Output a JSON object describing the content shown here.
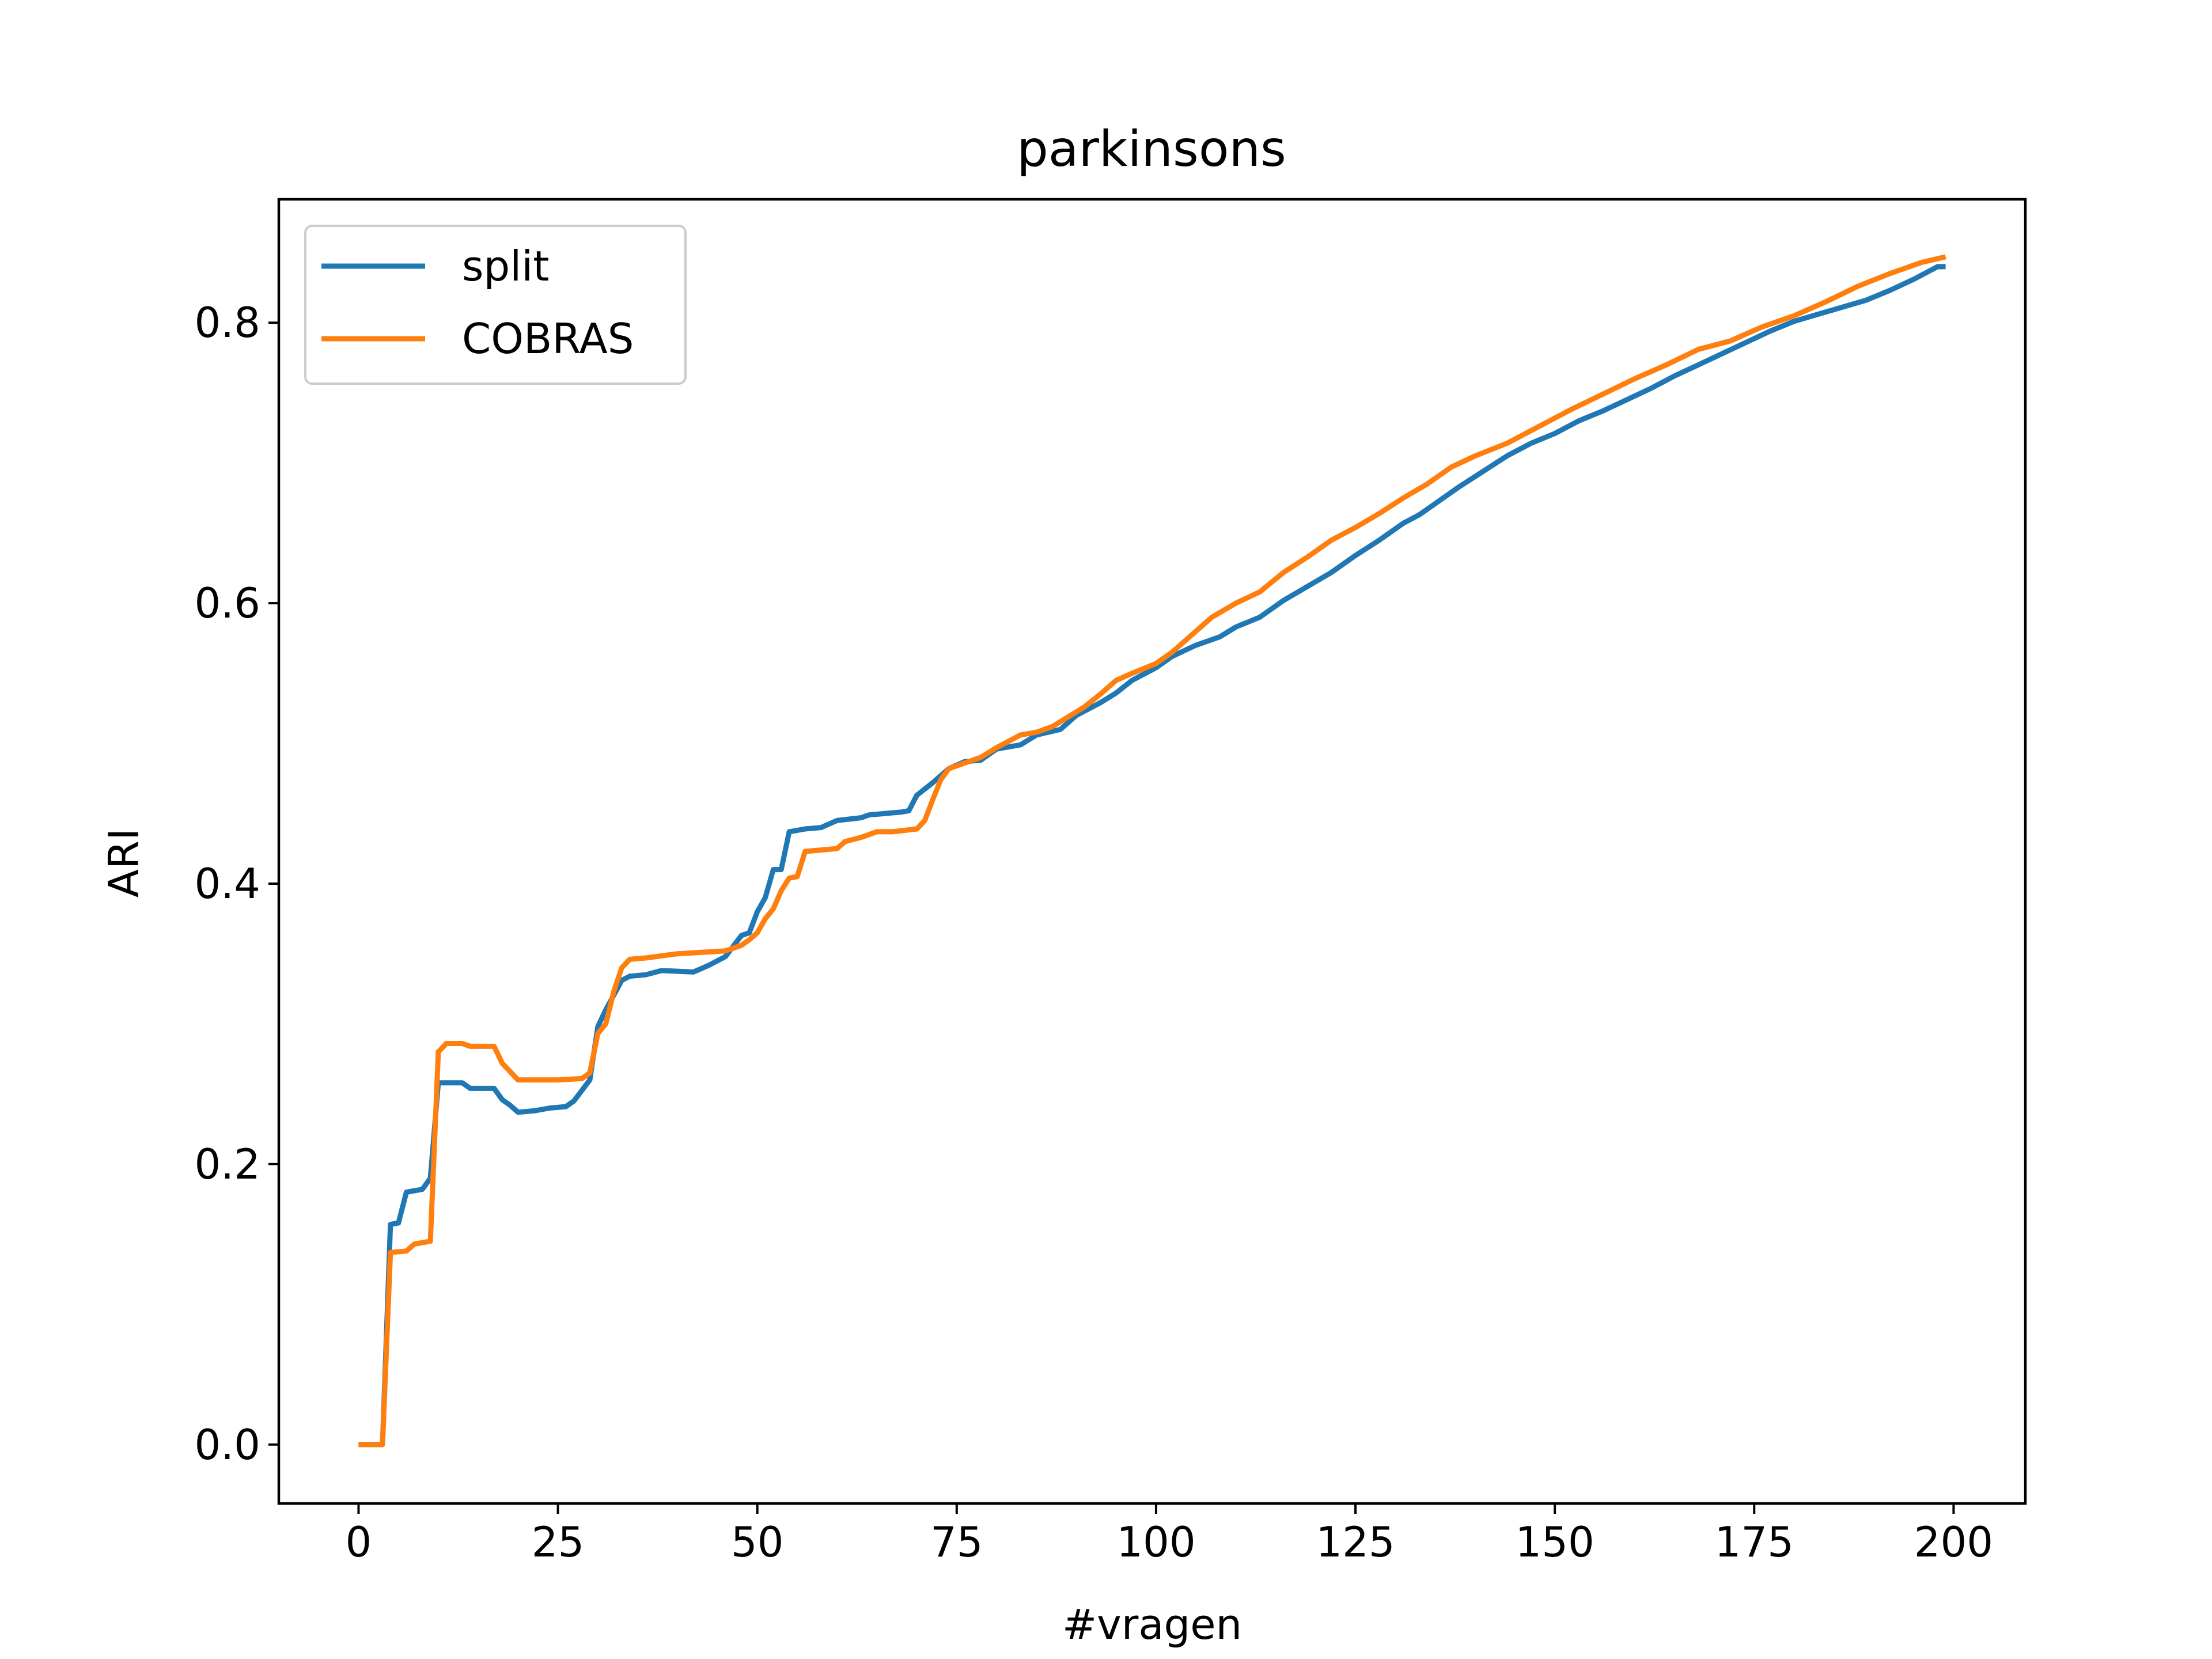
{
  "chart_data": {
    "type": "line",
    "title": "parkinsons",
    "xlabel": "#vragen",
    "ylabel": "ARI",
    "xlim": [
      -10,
      209
    ],
    "ylim": [
      -0.042,
      0.888
    ],
    "xticks": [
      0,
      25,
      50,
      75,
      100,
      125,
      150,
      175,
      200
    ],
    "xtick_labels": [
      "0",
      "25",
      "50",
      "75",
      "100",
      "125",
      "150",
      "175",
      "200"
    ],
    "yticks": [
      0.0,
      0.2,
      0.4,
      0.6,
      0.8
    ],
    "ytick_labels": [
      "0.0",
      "0.2",
      "0.4",
      "0.6",
      "0.8"
    ],
    "grid": false,
    "legend_position": "upper-left",
    "series": [
      {
        "name": "split",
        "color": "#1f77b4",
        "points": [
          [
            0,
            0.0
          ],
          [
            3,
            0.0
          ],
          [
            4,
            0.157
          ],
          [
            5,
            0.158
          ],
          [
            6,
            0.18
          ],
          [
            8,
            0.182
          ],
          [
            9,
            0.19
          ],
          [
            10,
            0.258
          ],
          [
            13,
            0.258
          ],
          [
            14,
            0.254
          ],
          [
            17,
            0.254
          ],
          [
            18,
            0.246
          ],
          [
            19,
            0.242
          ],
          [
            20,
            0.237
          ],
          [
            22,
            0.238
          ],
          [
            24,
            0.24
          ],
          [
            26,
            0.241
          ],
          [
            27,
            0.245
          ],
          [
            29,
            0.26
          ],
          [
            30,
            0.298
          ],
          [
            31,
            0.31
          ],
          [
            33,
            0.331
          ],
          [
            34,
            0.334
          ],
          [
            36,
            0.335
          ],
          [
            38,
            0.338
          ],
          [
            42,
            0.337
          ],
          [
            44,
            0.342
          ],
          [
            46,
            0.348
          ],
          [
            48,
            0.363
          ],
          [
            49,
            0.365
          ],
          [
            50,
            0.38
          ],
          [
            51,
            0.39
          ],
          [
            52,
            0.41
          ],
          [
            53,
            0.41
          ],
          [
            54,
            0.437
          ],
          [
            56,
            0.439
          ],
          [
            58,
            0.44
          ],
          [
            60,
            0.445
          ],
          [
            63,
            0.447
          ],
          [
            64,
            0.449
          ],
          [
            68,
            0.451
          ],
          [
            69,
            0.452
          ],
          [
            70,
            0.463
          ],
          [
            72,
            0.472
          ],
          [
            74,
            0.482
          ],
          [
            76,
            0.487
          ],
          [
            78,
            0.488
          ],
          [
            80,
            0.496
          ],
          [
            83,
            0.499
          ],
          [
            85,
            0.506
          ],
          [
            88,
            0.51
          ],
          [
            90,
            0.52
          ],
          [
            93,
            0.529
          ],
          [
            95,
            0.536
          ],
          [
            97,
            0.545
          ],
          [
            100,
            0.554
          ],
          [
            102,
            0.562
          ],
          [
            105,
            0.57
          ],
          [
            108,
            0.576
          ],
          [
            110,
            0.583
          ],
          [
            113,
            0.59
          ],
          [
            116,
            0.602
          ],
          [
            119,
            0.612
          ],
          [
            122,
            0.622
          ],
          [
            125,
            0.634
          ],
          [
            128,
            0.645
          ],
          [
            131,
            0.657
          ],
          [
            133,
            0.663
          ],
          [
            135,
            0.671
          ],
          [
            138,
            0.683
          ],
          [
            141,
            0.694
          ],
          [
            144,
            0.705
          ],
          [
            147,
            0.714
          ],
          [
            150,
            0.721
          ],
          [
            153,
            0.73
          ],
          [
            156,
            0.737
          ],
          [
            159,
            0.745
          ],
          [
            162,
            0.753
          ],
          [
            165,
            0.762
          ],
          [
            168,
            0.77
          ],
          [
            171,
            0.778
          ],
          [
            174,
            0.786
          ],
          [
            177,
            0.794
          ],
          [
            180,
            0.801
          ],
          [
            183,
            0.806
          ],
          [
            186,
            0.811
          ],
          [
            189,
            0.816
          ],
          [
            192,
            0.823
          ],
          [
            195,
            0.831
          ],
          [
            198,
            0.84
          ],
          [
            199,
            0.84
          ]
        ]
      },
      {
        "name": "COBRAS",
        "color": "#ff7f0e",
        "points": [
          [
            0,
            0.0
          ],
          [
            3,
            0.0
          ],
          [
            4,
            0.137
          ],
          [
            6,
            0.138
          ],
          [
            7,
            0.143
          ],
          [
            9,
            0.145
          ],
          [
            10,
            0.28
          ],
          [
            11,
            0.286
          ],
          [
            13,
            0.286
          ],
          [
            14,
            0.284
          ],
          [
            17,
            0.284
          ],
          [
            18,
            0.272
          ],
          [
            20,
            0.26
          ],
          [
            25,
            0.26
          ],
          [
            28,
            0.261
          ],
          [
            29,
            0.265
          ],
          [
            30,
            0.293
          ],
          [
            31,
            0.3
          ],
          [
            32,
            0.323
          ],
          [
            33,
            0.34
          ],
          [
            34,
            0.346
          ],
          [
            36,
            0.347
          ],
          [
            40,
            0.35
          ],
          [
            46,
            0.352
          ],
          [
            48,
            0.356
          ],
          [
            49,
            0.36
          ],
          [
            50,
            0.365
          ],
          [
            51,
            0.375
          ],
          [
            52,
            0.382
          ],
          [
            53,
            0.395
          ],
          [
            54,
            0.404
          ],
          [
            55,
            0.405
          ],
          [
            56,
            0.423
          ],
          [
            58,
            0.424
          ],
          [
            60,
            0.425
          ],
          [
            61,
            0.43
          ],
          [
            63,
            0.433
          ],
          [
            65,
            0.437
          ],
          [
            67,
            0.437
          ],
          [
            70,
            0.439
          ],
          [
            71,
            0.445
          ],
          [
            72,
            0.46
          ],
          [
            73,
            0.474
          ],
          [
            74,
            0.482
          ],
          [
            76,
            0.486
          ],
          [
            78,
            0.49
          ],
          [
            80,
            0.497
          ],
          [
            83,
            0.506
          ],
          [
            85,
            0.508
          ],
          [
            87,
            0.512
          ],
          [
            89,
            0.519
          ],
          [
            91,
            0.526
          ],
          [
            93,
            0.535
          ],
          [
            95,
            0.545
          ],
          [
            97,
            0.55
          ],
          [
            100,
            0.557
          ],
          [
            102,
            0.565
          ],
          [
            104,
            0.575
          ],
          [
            107,
            0.59
          ],
          [
            110,
            0.6
          ],
          [
            113,
            0.608
          ],
          [
            116,
            0.622
          ],
          [
            119,
            0.633
          ],
          [
            122,
            0.645
          ],
          [
            125,
            0.654
          ],
          [
            128,
            0.664
          ],
          [
            131,
            0.675
          ],
          [
            134,
            0.685
          ],
          [
            137,
            0.697
          ],
          [
            140,
            0.705
          ],
          [
            144,
            0.714
          ],
          [
            148,
            0.726
          ],
          [
            152,
            0.738
          ],
          [
            156,
            0.749
          ],
          [
            160,
            0.76
          ],
          [
            164,
            0.77
          ],
          [
            168,
            0.781
          ],
          [
            172,
            0.787
          ],
          [
            176,
            0.797
          ],
          [
            180,
            0.805
          ],
          [
            184,
            0.815
          ],
          [
            188,
            0.826
          ],
          [
            192,
            0.835
          ],
          [
            196,
            0.843
          ],
          [
            199,
            0.847
          ]
        ]
      }
    ]
  }
}
